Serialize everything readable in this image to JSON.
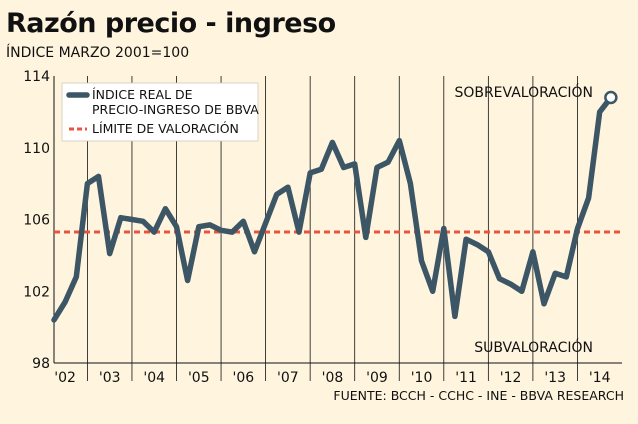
{
  "title": "Razón precio - ingreso",
  "subtitle": "ÍNDICE MARZO 2001=100",
  "source": "FUENTE: BCCH - CCHC - INE - BBVA RESEARCH",
  "colors": {
    "background": "#fff5df",
    "series": "#3c5666",
    "threshold": "#e8553e",
    "grid": "#111111"
  },
  "chart_data": {
    "type": "line",
    "title": "Razón precio - ingreso",
    "subtitle": "ÍNDICE MARZO 2001=100",
    "xlabel": "",
    "ylabel": "",
    "ylim": [
      98,
      114
    ],
    "yticks": [
      98,
      102,
      106,
      110,
      114
    ],
    "xticks": [
      "'02",
      "'03",
      "'04",
      "'05",
      "'06",
      "'07",
      "'08",
      "'09",
      "'10",
      "'11",
      "'12",
      "'13",
      "'14"
    ],
    "xrange": [
      2001.75,
      2014.5
    ],
    "grid": {
      "vertical": true,
      "horizontal": false
    },
    "legend_position": "top-left",
    "annotations": {
      "upper": "SOBREVALORACIÓN",
      "lower": "SUBVALORACIÓN"
    },
    "threshold": {
      "name": "LÍMITE DE VALORACIÓN",
      "value": 105.3
    },
    "series": [
      {
        "name": "ÍNDICE REAL DE PRECIO-INGRESO DE BBVA",
        "points": [
          [
            2001.75,
            100.4
          ],
          [
            2002.0,
            101.4
          ],
          [
            2002.25,
            102.8
          ],
          [
            2002.5,
            108.0
          ],
          [
            2002.75,
            108.4
          ],
          [
            2003.0,
            104.1
          ],
          [
            2003.25,
            106.1
          ],
          [
            2003.5,
            106.0
          ],
          [
            2003.75,
            105.9
          ],
          [
            2004.0,
            105.3
          ],
          [
            2004.25,
            106.6
          ],
          [
            2004.5,
            105.6
          ],
          [
            2004.75,
            102.6
          ],
          [
            2005.0,
            105.6
          ],
          [
            2005.25,
            105.7
          ],
          [
            2005.5,
            105.4
          ],
          [
            2005.75,
            105.3
          ],
          [
            2006.0,
            105.9
          ],
          [
            2006.25,
            104.2
          ],
          [
            2006.5,
            105.8
          ],
          [
            2006.75,
            107.4
          ],
          [
            2007.0,
            107.8
          ],
          [
            2007.25,
            105.3
          ],
          [
            2007.5,
            108.6
          ],
          [
            2007.75,
            108.8
          ],
          [
            2008.0,
            110.3
          ],
          [
            2008.25,
            108.9
          ],
          [
            2008.5,
            109.1
          ],
          [
            2008.75,
            105.0
          ],
          [
            2009.0,
            108.9
          ],
          [
            2009.25,
            109.2
          ],
          [
            2009.5,
            110.4
          ],
          [
            2009.75,
            108.0
          ],
          [
            2010.0,
            103.7
          ],
          [
            2010.25,
            102.0
          ],
          [
            2010.5,
            105.5
          ],
          [
            2010.75,
            100.6
          ],
          [
            2011.0,
            104.9
          ],
          [
            2011.25,
            104.6
          ],
          [
            2011.5,
            104.2
          ],
          [
            2011.75,
            102.7
          ],
          [
            2012.0,
            102.4
          ],
          [
            2012.25,
            102.0
          ],
          [
            2012.5,
            104.2
          ],
          [
            2012.75,
            101.3
          ],
          [
            2013.0,
            103.0
          ],
          [
            2013.25,
            102.8
          ],
          [
            2013.5,
            105.5
          ],
          [
            2013.75,
            107.2
          ],
          [
            2014.0,
            112.0
          ],
          [
            2014.25,
            112.8
          ]
        ]
      }
    ]
  }
}
